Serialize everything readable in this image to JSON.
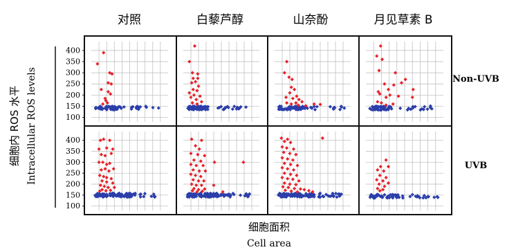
{
  "panel_titles": [
    "对照",
    "白藜芦醇",
    "山奈酚",
    "月见草素 B"
  ],
  "row_labels": [
    "Non-UVB",
    "UVB"
  ],
  "ylabel_cn": "细胞内 ROS 水平",
  "ylabel_en": "Intracellular ROS levels",
  "xlabel_cn": "细胞面积",
  "xlabel_en": "Cell area",
  "colors": {
    "high": "#e8222a",
    "base": "#2b3eaa",
    "grid": "#b9b9b9",
    "frame": "#111111"
  },
  "chart_data": {
    "type": "scatter",
    "layout": "small-multiples 2 rows x 4 columns",
    "yticks": [
      100,
      150,
      200,
      250,
      300,
      350,
      400
    ],
    "ylim": [
      80,
      440
    ],
    "xlim": [
      0,
      10
    ],
    "x_tick_labels": "none",
    "grid": true,
    "panels": [
      {
        "title": "对照",
        "row": "Non-UVB",
        "red": [
          [
            0.8,
            340
          ],
          [
            1.6,
            390
          ],
          [
            1.3,
            225
          ],
          [
            1.8,
            185
          ],
          [
            2.4,
            300
          ],
          [
            2.7,
            295
          ],
          [
            2.2,
            255
          ],
          [
            2.6,
            250
          ],
          [
            2.2,
            215
          ],
          [
            1.9,
            175
          ],
          [
            2.5,
            205
          ],
          [
            1.5,
            160
          ],
          [
            2.1,
            165
          ]
        ],
        "blue": {
          "x_range": [
            0.5,
            8.8
          ],
          "y_center": 142,
          "y_spread": 8,
          "count": 70,
          "dense_until": 4.0
        }
      },
      {
        "title": "白藜芦醇",
        "row": "Non-UVB",
        "red": [
          [
            1.5,
            420
          ],
          [
            0.8,
            350
          ],
          [
            1.2,
            300
          ],
          [
            1.9,
            295
          ],
          [
            1.3,
            275
          ],
          [
            1.9,
            275
          ],
          [
            1.1,
            255
          ],
          [
            1.6,
            260
          ],
          [
            2.0,
            240
          ],
          [
            1.3,
            225
          ],
          [
            1.8,
            220
          ],
          [
            0.8,
            210
          ],
          [
            1.4,
            200
          ],
          [
            2.2,
            195
          ],
          [
            1.0,
            190
          ],
          [
            1.7,
            180
          ],
          [
            1.2,
            165
          ],
          [
            2.4,
            170
          ],
          [
            1.8,
            160
          ]
        ],
        "blue": {
          "x_range": [
            0.5,
            9.0
          ],
          "y_center": 142,
          "y_spread": 8,
          "count": 75,
          "dense_until": 3.0
        }
      },
      {
        "title": "山奈酚",
        "row": "Non-UVB",
        "red": [
          [
            1.6,
            350
          ],
          [
            1.3,
            300
          ],
          [
            1.9,
            280
          ],
          [
            2.3,
            270
          ],
          [
            2.2,
            235
          ],
          [
            2.6,
            225
          ],
          [
            2.0,
            210
          ],
          [
            2.9,
            195
          ],
          [
            1.5,
            190
          ],
          [
            2.4,
            185
          ],
          [
            3.2,
            180
          ],
          [
            3.6,
            170
          ],
          [
            1.6,
            165
          ],
          [
            2.2,
            160
          ],
          [
            2.8,
            165
          ],
          [
            3.1,
            155
          ],
          [
            5.2,
            160
          ],
          [
            6.0,
            158
          ],
          [
            4.1,
            152
          ]
        ],
        "blue": {
          "x_range": [
            0.5,
            9.5
          ],
          "y_center": 142,
          "y_spread": 8,
          "count": 75,
          "dense_until": 4.0
        }
      },
      {
        "title": "月见草素 B",
        "row": "Non-UVB",
        "red": [
          [
            1.9,
            420
          ],
          [
            1.4,
            375
          ],
          [
            2.1,
            360
          ],
          [
            1.7,
            310
          ],
          [
            3.8,
            300
          ],
          [
            2.4,
            250
          ],
          [
            5.1,
            270
          ],
          [
            4.6,
            255
          ],
          [
            3.6,
            245
          ],
          [
            2.9,
            225
          ],
          [
            6.1,
            225
          ],
          [
            1.6,
            215
          ],
          [
            1.8,
            205
          ],
          [
            3.1,
            200
          ],
          [
            4.2,
            195
          ],
          [
            6.0,
            190
          ],
          [
            2.6,
            190
          ],
          [
            1.5,
            170
          ],
          [
            2.0,
            165
          ],
          [
            3.5,
            160
          ],
          [
            2.6,
            155
          ]
        ],
        "blue": {
          "x_range": [
            0.5,
            9.3
          ],
          "y_center": 142,
          "y_spread": 9,
          "count": 60,
          "dense_until": 3.0
        }
      },
      {
        "title": "对照",
        "row": "UVB",
        "red": [
          [
            1.2,
            400
          ],
          [
            1.6,
            405
          ],
          [
            2.4,
            400
          ],
          [
            1.0,
            360
          ],
          [
            2.0,
            365
          ],
          [
            2.8,
            360
          ],
          [
            1.3,
            335
          ],
          [
            1.8,
            330
          ],
          [
            2.6,
            340
          ],
          [
            1.0,
            300
          ],
          [
            1.5,
            300
          ],
          [
            2.0,
            290
          ],
          [
            2.4,
            295
          ],
          [
            1.3,
            265
          ],
          [
            1.8,
            270
          ],
          [
            2.3,
            260
          ],
          [
            2.9,
            270
          ],
          [
            1.1,
            240
          ],
          [
            1.6,
            235
          ],
          [
            2.0,
            230
          ],
          [
            2.6,
            225
          ],
          [
            1.4,
            215
          ],
          [
            2.0,
            210
          ],
          [
            2.8,
            205
          ],
          [
            1.2,
            195
          ],
          [
            1.7,
            190
          ],
          [
            2.2,
            185
          ],
          [
            3.0,
            185
          ],
          [
            1.4,
            175
          ],
          [
            1.9,
            170
          ],
          [
            2.5,
            172
          ],
          [
            1.1,
            168
          ]
        ],
        "blue": {
          "x_range": [
            0.5,
            9.2
          ],
          "y_center": 150,
          "y_spread": 9,
          "count": 110,
          "dense_until": 5.0
        }
      },
      {
        "title": "白藜芦醇",
        "row": "UVB",
        "red": [
          [
            1.1,
            405
          ],
          [
            2.4,
            400
          ],
          [
            1.6,
            375
          ],
          [
            2.1,
            360
          ],
          [
            1.0,
            340
          ],
          [
            1.9,
            335
          ],
          [
            2.8,
            330
          ],
          [
            1.4,
            310
          ],
          [
            2.3,
            305
          ],
          [
            1.0,
            290
          ],
          [
            1.7,
            285
          ],
          [
            2.6,
            285
          ],
          [
            1.3,
            265
          ],
          [
            2.1,
            260
          ],
          [
            2.9,
            260
          ],
          [
            1.0,
            245
          ],
          [
            1.6,
            240
          ],
          [
            2.3,
            235
          ],
          [
            1.3,
            220
          ],
          [
            2.0,
            215
          ],
          [
            2.7,
            215
          ],
          [
            1.1,
            200
          ],
          [
            1.7,
            195
          ],
          [
            2.4,
            195
          ],
          [
            1.4,
            180
          ],
          [
            2.0,
            175
          ],
          [
            2.8,
            178
          ],
          [
            1.2,
            170
          ],
          [
            1.8,
            165
          ],
          [
            2.5,
            168
          ],
          [
            4.1,
            300
          ],
          [
            7.9,
            300
          ],
          [
            4.0,
            195
          ],
          [
            5.2,
            165
          ]
        ],
        "blue": {
          "x_range": [
            0.5,
            9.0
          ],
          "y_center": 150,
          "y_spread": 9,
          "count": 110,
          "dense_until": 4.5
        }
      },
      {
        "title": "山奈酚",
        "row": "UVB",
        "red": [
          [
            0.9,
            410
          ],
          [
            1.7,
            405
          ],
          [
            1.3,
            395
          ],
          [
            2.1,
            390
          ],
          [
            1.0,
            370
          ],
          [
            1.6,
            365
          ],
          [
            2.5,
            360
          ],
          [
            1.2,
            345
          ],
          [
            2.0,
            340
          ],
          [
            2.8,
            335
          ],
          [
            1.0,
            320
          ],
          [
            1.7,
            315
          ],
          [
            2.4,
            310
          ],
          [
            1.3,
            295
          ],
          [
            2.1,
            290
          ],
          [
            3.0,
            285
          ],
          [
            1.0,
            275
          ],
          [
            1.7,
            270
          ],
          [
            2.5,
            265
          ],
          [
            1.3,
            250
          ],
          [
            2.1,
            245
          ],
          [
            2.9,
            240
          ],
          [
            1.0,
            230
          ],
          [
            1.7,
            225
          ],
          [
            2.4,
            222
          ],
          [
            3.2,
            215
          ],
          [
            1.3,
            205
          ],
          [
            2.0,
            200
          ],
          [
            2.8,
            198
          ],
          [
            1.1,
            188
          ],
          [
            1.8,
            185
          ],
          [
            2.6,
            180
          ],
          [
            3.4,
            178
          ],
          [
            1.4,
            172
          ],
          [
            2.2,
            168
          ],
          [
            3.0,
            165
          ],
          [
            3.9,
            175
          ],
          [
            4.5,
            170
          ],
          [
            6.3,
            410
          ],
          [
            5.0,
            165
          ]
        ],
        "blue": {
          "x_range": [
            0.5,
            9.2
          ],
          "y_center": 150,
          "y_spread": 9,
          "count": 120,
          "dense_until": 5.0
        }
      },
      {
        "title": "月见草素 B",
        "row": "UVB",
        "red": [
          [
            2.6,
            310
          ],
          [
            1.9,
            280
          ],
          [
            2.9,
            280
          ],
          [
            1.5,
            265
          ],
          [
            2.3,
            260
          ],
          [
            1.8,
            240
          ],
          [
            2.6,
            230
          ],
          [
            1.4,
            220
          ],
          [
            2.2,
            215
          ],
          [
            2.9,
            205
          ],
          [
            1.7,
            200
          ],
          [
            2.4,
            190
          ],
          [
            1.5,
            180
          ],
          [
            2.2,
            175
          ],
          [
            1.8,
            170
          ]
        ],
        "blue": {
          "x_range": [
            0.5,
            9.3
          ],
          "y_center": 145,
          "y_spread": 8,
          "count": 70,
          "dense_until": 4.0
        }
      }
    ]
  }
}
